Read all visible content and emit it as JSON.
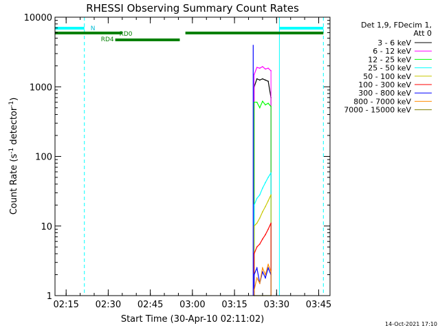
{
  "chart_data": {
    "type": "line",
    "title": "RHESSI Observing Summary Count Rates",
    "xlabel": "Start Time (30-Apr-10 02:11:02)",
    "ylabel_main": "Count Rate (s",
    "ylabel_sup1": "-1",
    "ylabel_mid": " detector",
    "ylabel_sup2": "-1",
    "ylabel_end": ")",
    "y_scale": "log",
    "ylim": [
      1,
      10000
    ],
    "xlim": [
      "02:11:02",
      "03:49:02"
    ],
    "x_ticks": [
      "02:15",
      "02:30",
      "02:45",
      "03:00",
      "03:15",
      "03:30",
      "03:45"
    ],
    "y_ticks": [
      "1",
      "10",
      "100",
      "1000",
      "10000"
    ],
    "legend_placement": "right",
    "legend_header": [
      "Det 1,9, FDecim 1,",
      "Att 0"
    ],
    "series": [
      {
        "name": "3 - 6 keV",
        "color": "#000000",
        "x": [
          "03:22",
          "03:23",
          "03:24",
          "03:25",
          "03:26",
          "03:27",
          "03:28"
        ],
        "y": [
          1000,
          1300,
          1250,
          1300,
          1250,
          1200,
          700
        ]
      },
      {
        "name": "6 - 12 keV",
        "color": "#ff00ff",
        "x": [
          "03:22",
          "03:23",
          "03:24",
          "03:25",
          "03:26",
          "03:27",
          "03:28"
        ],
        "y": [
          1500,
          1900,
          1850,
          1950,
          1800,
          1850,
          1700
        ]
      },
      {
        "name": "12 - 25 keV",
        "color": "#00ff00",
        "x": [
          "03:22",
          "03:23",
          "03:24",
          "03:25",
          "03:26",
          "03:27",
          "03:28"
        ],
        "y": [
          600,
          600,
          500,
          620,
          550,
          580,
          520
        ]
      },
      {
        "name": "25 - 50 keV",
        "color": "#00ffff",
        "x": [
          "03:22",
          "03:23",
          "03:24",
          "03:25",
          "03:26",
          "03:27",
          "03:28"
        ],
        "y": [
          20,
          25,
          28,
          35,
          42,
          50,
          58
        ]
      },
      {
        "name": "50 - 100 keV",
        "color": "#c8c800",
        "x": [
          "03:22",
          "03:23",
          "03:24",
          "03:25",
          "03:26",
          "03:27",
          "03:28"
        ],
        "y": [
          10,
          11,
          13,
          16,
          19,
          23,
          28
        ]
      },
      {
        "name": "100 - 300 keV",
        "color": "#ff0000",
        "x": [
          "03:22",
          "03:23",
          "03:24",
          "03:25",
          "03:26",
          "03:27",
          "03:28"
        ],
        "y": [
          4,
          5,
          5.5,
          6.5,
          7.5,
          9,
          11
        ]
      },
      {
        "name": "300 - 800 keV",
        "color": "#0000ff",
        "x": [
          "03:22",
          "03:23",
          "03:24",
          "03:25",
          "03:26",
          "03:27",
          "03:28"
        ],
        "y": [
          2,
          2.5,
          1.5,
          2.2,
          1.8,
          2.5,
          2
        ]
      },
      {
        "name": "800 - 7000 keV",
        "color": "#ff8c00",
        "x": [
          "03:22",
          "03:23",
          "03:24",
          "03:25",
          "03:26",
          "03:27",
          "03:28"
        ],
        "y": [
          1.2,
          1.8,
          1.5,
          2.5,
          2,
          2.8,
          2.2
        ]
      },
      {
        "name": "7000 - 15000 keV",
        "color": "#808000",
        "x": [
          "03:22",
          "03:28"
        ],
        "y": [
          1,
          1
        ]
      }
    ],
    "spike": {
      "x": "03:21:40",
      "y": 4000
    },
    "annotations": {
      "N_label": "N",
      "RD0_label": "RD0",
      "RD4_label": "RD4",
      "night_segments": [
        [
          "02:11:02",
          "02:21:30"
        ],
        [
          "03:31:00",
          "03:46:40"
        ]
      ],
      "rd0_segments": [
        [
          "02:11:02",
          "02:35:00"
        ],
        [
          "02:57:30",
          "03:46:40"
        ]
      ],
      "rd4_segments": [
        [
          "02:32:30",
          "02:55:30"
        ]
      ],
      "solid_verticals": [
        "02:11:02",
        "03:31:00"
      ],
      "dashed_verticals": [
        "02:21:30",
        "03:46:40"
      ]
    }
  },
  "footer": {
    "date": "14-Oct-2021 17:10"
  }
}
